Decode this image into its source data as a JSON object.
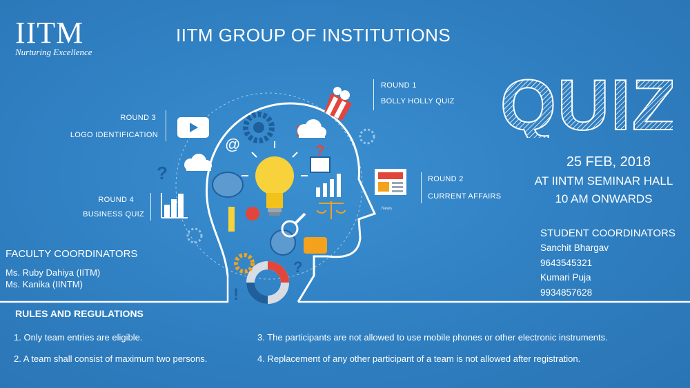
{
  "logo": {
    "mark": "IITM",
    "tagline": "Nurturing Excellence"
  },
  "header": {
    "title": "IITM GROUP OF INSTITUTIONS"
  },
  "rounds": [
    {
      "name": "ROUND 1",
      "topic": "BOLLY HOLLY QUIZ"
    },
    {
      "name": "ROUND 2",
      "topic": "CURRENT AFFAIRS"
    },
    {
      "name": "ROUND 3",
      "topic": "LOGO IDENTIFICATION"
    },
    {
      "name": "ROUND 4",
      "topic": "BUSINESS QUIZ"
    }
  ],
  "event": {
    "title": "QUIZ",
    "date": "25 FEB, 2018",
    "venue": "AT IINTM SEMINAR HALL",
    "time": "10 AM ONWARDS"
  },
  "student_coordinators": {
    "title": "STUDENT COORDINATORS",
    "items": [
      "Sanchit Bhargav",
      "9643545321",
      "Kumari Puja",
      "9934857628"
    ]
  },
  "faculty_coordinators": {
    "title": "FACULTY COORDINATORS",
    "items": [
      "Ms. Ruby Dahiya (IITM)",
      "Ms. Kanika  (IINTM)"
    ]
  },
  "rules": {
    "title": "RULES AND REGULATIONS",
    "items": [
      "1. Only team entries are eligible.",
      "2. A team shall consist of maximum two persons.",
      "3. The participants are not allowed to use mobile phones or other electronic instruments.",
      "4. Replacement of any other participant of a team is not allowed after registration."
    ]
  },
  "illustration": {
    "news_label": "News"
  },
  "colors": {
    "background": "#2f7fc1",
    "bulb": "#f7d23a",
    "accent_red": "#e2463b",
    "accent_orange": "#f4a21d"
  }
}
